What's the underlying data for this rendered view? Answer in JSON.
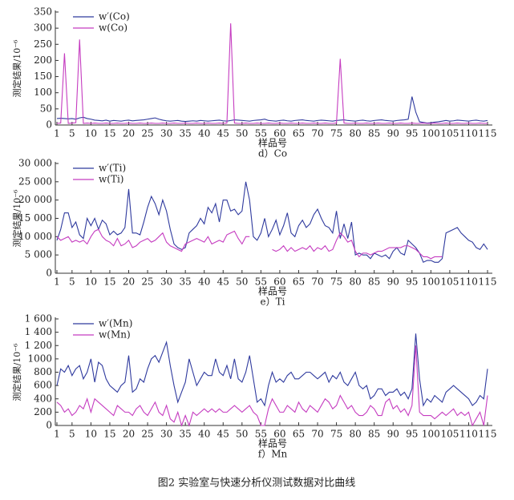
{
  "chart_data": [
    {
      "type": "line",
      "ylabel": "测定结果/10⁻⁶",
      "xlabel": "样品号",
      "caption": "d）Co",
      "x": [
        1,
        2,
        3,
        4,
        5,
        6,
        7,
        8,
        9,
        10,
        11,
        12,
        13,
        14,
        15,
        16,
        17,
        18,
        19,
        20,
        21,
        22,
        23,
        24,
        25,
        26,
        27,
        28,
        29,
        30,
        31,
        32,
        33,
        34,
        35,
        36,
        37,
        38,
        39,
        40,
        41,
        42,
        43,
        44,
        45,
        46,
        47,
        48,
        49,
        50,
        51,
        52,
        53,
        54,
        55,
        56,
        57,
        58,
        59,
        60,
        61,
        62,
        63,
        64,
        65,
        66,
        67,
        68,
        69,
        70,
        71,
        72,
        73,
        74,
        75,
        76,
        77,
        78,
        79,
        80,
        81,
        82,
        83,
        84,
        85,
        86,
        87,
        88,
        89,
        90,
        91,
        92,
        93,
        94,
        95,
        96,
        97,
        98,
        99,
        100,
        101,
        102,
        103,
        104,
        105,
        106,
        107,
        108,
        109,
        110,
        111,
        112,
        113,
        114,
        115
      ],
      "xlim": [
        1,
        115
      ],
      "xticks": [
        1,
        5,
        10,
        15,
        20,
        25,
        30,
        35,
        40,
        45,
        50,
        55,
        60,
        65,
        70,
        75,
        80,
        85,
        90,
        95,
        100,
        105,
        110,
        115
      ],
      "ylim": [
        0,
        350
      ],
      "yticks": [
        0,
        50,
        100,
        150,
        200,
        250,
        300,
        350
      ],
      "series": [
        {
          "name": "w′(Co)",
          "color": "#2f3a9e",
          "values": [
            20,
            21,
            20,
            19,
            20,
            18,
            22,
            24,
            20,
            18,
            15,
            14,
            13,
            15,
            12,
            14,
            13,
            12,
            14,
            15,
            13,
            14,
            15,
            16,
            18,
            20,
            22,
            18,
            15,
            13,
            12,
            13,
            14,
            12,
            11,
            12,
            13,
            12,
            14,
            13,
            12,
            13,
            14,
            15,
            13,
            12,
            14,
            16,
            15,
            14,
            13,
            12,
            14,
            15,
            16,
            18,
            14,
            13,
            12,
            14,
            15,
            13,
            12,
            14,
            15,
            16,
            14,
            13,
            12,
            14,
            15,
            14,
            13,
            12,
            14,
            15,
            16,
            14,
            13,
            12,
            14,
            15,
            13,
            12,
            14,
            15,
            16,
            14,
            13,
            12,
            14,
            15,
            16,
            18,
            88,
            40,
            10,
            8,
            6,
            7,
            9,
            10,
            12,
            14,
            12,
            13,
            15,
            14,
            13,
            12,
            14,
            15,
            13,
            12,
            14
          ]
        },
        {
          "name": "w(Co)",
          "color": "#c53cc0",
          "values": [
            5,
            6,
            222,
            5,
            6,
            7,
            265,
            5,
            6,
            5,
            6,
            5,
            5,
            6,
            5,
            5,
            6,
            5,
            5,
            6,
            5,
            5,
            6,
            5,
            5,
            6,
            5,
            5,
            6,
            5,
            5,
            6,
            5,
            5,
            6,
            5,
            5,
            6,
            5,
            5,
            6,
            5,
            5,
            6,
            5,
            6,
            315,
            6,
            5,
            5,
            6,
            5,
            5,
            6,
            5,
            5,
            6,
            5,
            5,
            6,
            5,
            5,
            6,
            5,
            5,
            6,
            5,
            5,
            6,
            5,
            5,
            6,
            5,
            5,
            6,
            205,
            6,
            5,
            5,
            6,
            5,
            5,
            6,
            5,
            5,
            6,
            5,
            5,
            6,
            5,
            5,
            6,
            5,
            5,
            6,
            5,
            5,
            6,
            5,
            5,
            6,
            5,
            5,
            6,
            5,
            5,
            6,
            5,
            5,
            6,
            5,
            5,
            6,
            5,
            5
          ]
        }
      ]
    },
    {
      "type": "line",
      "ylabel": "测定结果/10⁻⁶",
      "xlabel": "样品号",
      "caption": "e）Ti",
      "x": [
        1,
        2,
        3,
        4,
        5,
        6,
        7,
        8,
        9,
        10,
        11,
        12,
        13,
        14,
        15,
        16,
        17,
        18,
        19,
        20,
        21,
        22,
        23,
        24,
        25,
        26,
        27,
        28,
        29,
        30,
        31,
        32,
        33,
        34,
        35,
        36,
        37,
        38,
        39,
        40,
        41,
        42,
        43,
        44,
        45,
        46,
        47,
        48,
        49,
        50,
        51,
        52,
        53,
        54,
        55,
        56,
        57,
        58,
        59,
        60,
        61,
        62,
        63,
        64,
        65,
        66,
        67,
        68,
        69,
        70,
        71,
        72,
        73,
        74,
        75,
        76,
        77,
        78,
        79,
        80,
        81,
        82,
        83,
        84,
        85,
        86,
        87,
        88,
        89,
        90,
        91,
        92,
        93,
        94,
        95,
        96,
        97,
        98,
        99,
        100,
        101,
        102,
        103,
        104,
        105,
        106,
        107,
        108,
        109,
        110,
        111,
        112,
        113,
        114,
        115
      ],
      "xlim": [
        1,
        115
      ],
      "xticks": [
        1,
        5,
        10,
        15,
        20,
        25,
        30,
        35,
        40,
        45,
        50,
        55,
        60,
        65,
        70,
        75,
        80,
        85,
        90,
        95,
        100,
        105,
        110,
        115
      ],
      "ylim": [
        0,
        30000
      ],
      "yticks": [
        0,
        {
          "value": 5000,
          "label": "5 000"
        },
        {
          "value": 10000,
          "label": "10 000"
        },
        {
          "value": 15000,
          "label": "15 000"
        },
        {
          "value": 20000,
          "label": "20 000"
        },
        {
          "value": 25000,
          "label": "25 000"
        },
        {
          "value": 30000,
          "label": "30 000"
        }
      ],
      "series": [
        {
          "name": "w′(Ti)",
          "color": "#2f3a9e",
          "values": [
            9000,
            12000,
            16500,
            16500,
            12500,
            14000,
            10500,
            9500,
            15000,
            13000,
            15000,
            12000,
            14500,
            13500,
            10500,
            11500,
            10500,
            11000,
            12500,
            23000,
            11000,
            11000,
            10500,
            14000,
            18000,
            21000,
            19000,
            16000,
            20000,
            17000,
            12000,
            8000,
            7000,
            6500,
            7000,
            11000,
            12000,
            13000,
            15000,
            13500,
            18000,
            16500,
            19000,
            14000,
            20000,
            20000,
            17000,
            17500,
            16000,
            17000,
            25000,
            20000,
            10000,
            9000,
            11000,
            15000,
            10000,
            12000,
            14500,
            10500,
            13000,
            16500,
            11000,
            10000,
            13000,
            14500,
            12500,
            13500,
            16000,
            17500,
            15000,
            13000,
            12500,
            11000,
            17000,
            9500,
            13500,
            9500,
            14000,
            5000,
            5500,
            5000,
            5000,
            4000,
            5500,
            5000,
            4500,
            5000,
            4000,
            6000,
            7000,
            5500,
            5000,
            9000,
            8000,
            7000,
            5500,
            3000,
            3500,
            3500,
            3000,
            3000,
            4000,
            11000,
            11500,
            12000,
            12500,
            11000,
            10000,
            9000,
            8500,
            7000,
            6500,
            8000,
            6500
          ]
        },
        {
          "name": "w(Ti)",
          "color": "#c53cc0",
          "values": [
            10000,
            9000,
            9500,
            10000,
            8500,
            9000,
            8500,
            9000,
            8000,
            10000,
            11500,
            12000,
            10000,
            9000,
            8500,
            7500,
            9500,
            7500,
            8000,
            9000,
            7000,
            7500,
            8500,
            9000,
            9500,
            8500,
            9000,
            10000,
            11000,
            8500,
            7500,
            7000,
            6500,
            6000,
            8000,
            8500,
            9000,
            9500,
            9000,
            8500,
            10000,
            8000,
            8500,
            9000,
            8500,
            10500,
            11000,
            11500,
            9500,
            8000,
            10000,
            10000,
            null,
            null,
            null,
            null,
            null,
            6500,
            6000,
            6500,
            7500,
            6000,
            7000,
            6000,
            6500,
            7000,
            6500,
            7500,
            6000,
            7000,
            6500,
            7500,
            6000,
            6500,
            9000,
            11000,
            10000,
            8500,
            9000,
            6000,
            4500,
            5500,
            5500,
            5000,
            5500,
            6000,
            6000,
            6500,
            7000,
            7000,
            7000,
            7000,
            7500,
            7500,
            7000,
            6500,
            5500,
            4500,
            4500,
            4000,
            4500,
            4500,
            4500,
            null,
            null,
            null,
            null,
            null,
            null,
            null,
            null,
            null,
            null,
            null,
            null
          ]
        }
      ]
    },
    {
      "type": "line",
      "ylabel": "测定结果/10⁻⁶",
      "xlabel": "样品号",
      "caption": "f）Mn",
      "x": [
        1,
        2,
        3,
        4,
        5,
        6,
        7,
        8,
        9,
        10,
        11,
        12,
        13,
        14,
        15,
        16,
        17,
        18,
        19,
        20,
        21,
        22,
        23,
        24,
        25,
        26,
        27,
        28,
        29,
        30,
        31,
        32,
        33,
        34,
        35,
        36,
        37,
        38,
        39,
        40,
        41,
        42,
        43,
        44,
        45,
        46,
        47,
        48,
        49,
        50,
        51,
        52,
        53,
        54,
        55,
        56,
        57,
        58,
        59,
        60,
        61,
        62,
        63,
        64,
        65,
        66,
        67,
        68,
        69,
        70,
        71,
        72,
        73,
        74,
        75,
        76,
        77,
        78,
        79,
        80,
        81,
        82,
        83,
        84,
        85,
        86,
        87,
        88,
        89,
        90,
        91,
        92,
        93,
        94,
        95,
        96,
        97,
        98,
        99,
        100,
        101,
        102,
        103,
        104,
        105,
        106,
        107,
        108,
        109,
        110,
        111,
        112,
        113,
        114,
        115
      ],
      "xlim": [
        1,
        115
      ],
      "xticks": [
        1,
        5,
        10,
        15,
        20,
        25,
        30,
        35,
        40,
        45,
        50,
        55,
        60,
        65,
        70,
        75,
        80,
        85,
        90,
        95,
        100,
        105,
        110,
        115
      ],
      "ylim": [
        0,
        1600
      ],
      "yticks": [
        0,
        200,
        400,
        600,
        800,
        1000,
        {
          "value": 1200,
          "label": "1 200"
        },
        {
          "value": 1400,
          "label": "1 400"
        },
        {
          "value": 1600,
          "label": "1 600"
        }
      ],
      "series": [
        {
          "name": "w′(Mn)",
          "color": "#2f3a9e",
          "values": [
            600,
            850,
            800,
            900,
            750,
            850,
            900,
            700,
            800,
            1000,
            650,
            950,
            900,
            700,
            600,
            550,
            500,
            600,
            650,
            1050,
            500,
            550,
            700,
            650,
            850,
            1000,
            1050,
            950,
            1100,
            1250,
            900,
            600,
            350,
            500,
            650,
            1000,
            800,
            600,
            700,
            800,
            750,
            750,
            1000,
            800,
            750,
            900,
            700,
            1000,
            700,
            650,
            800,
            1050,
            700,
            350,
            400,
            300,
            600,
            800,
            650,
            700,
            650,
            750,
            800,
            700,
            700,
            750,
            800,
            800,
            750,
            700,
            750,
            800,
            650,
            750,
            700,
            800,
            650,
            600,
            700,
            800,
            600,
            550,
            600,
            400,
            450,
            550,
            550,
            450,
            500,
            500,
            550,
            450,
            500,
            400,
            550,
            1380,
            700,
            300,
            400,
            350,
            450,
            400,
            350,
            500,
            550,
            600,
            550,
            500,
            450,
            400,
            300,
            350,
            450,
            400,
            850
          ]
        },
        {
          "name": "w(Mn)",
          "color": "#c53cc0",
          "values": [
            350,
            300,
            200,
            250,
            150,
            200,
            300,
            250,
            400,
            200,
            400,
            350,
            300,
            250,
            200,
            150,
            300,
            250,
            200,
            200,
            150,
            250,
            300,
            200,
            150,
            250,
            350,
            200,
            150,
            300,
            100,
            50,
            200,
            0,
            150,
            0,
            200,
            150,
            200,
            250,
            200,
            250,
            200,
            250,
            200,
            200,
            250,
            300,
            250,
            200,
            250,
            300,
            200,
            150,
            0,
            0,
            250,
            400,
            300,
            200,
            200,
            300,
            250,
            200,
            350,
            250,
            200,
            300,
            250,
            200,
            300,
            400,
            350,
            250,
            300,
            450,
            350,
            250,
            300,
            200,
            150,
            150,
            200,
            300,
            250,
            150,
            150,
            350,
            400,
            250,
            300,
            200,
            250,
            150,
            300,
            1200,
            200,
            150,
            150,
            150,
            100,
            150,
            200,
            150,
            200,
            250,
            150,
            200,
            150,
            200,
            0,
            100,
            200,
            0,
            450
          ]
        }
      ]
    }
  ],
  "caption": "图2    实验室与快速分析仪测试数据对比曲线"
}
